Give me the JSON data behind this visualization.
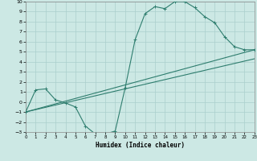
{
  "xlabel": "Humidex (Indice chaleur)",
  "xlim": [
    0,
    23
  ],
  "ylim": [
    -3,
    10
  ],
  "xticks": [
    0,
    1,
    2,
    3,
    4,
    5,
    6,
    7,
    8,
    9,
    10,
    11,
    12,
    13,
    14,
    15,
    16,
    17,
    18,
    19,
    20,
    21,
    22,
    23
  ],
  "yticks": [
    -3,
    -2,
    -1,
    0,
    1,
    2,
    3,
    4,
    5,
    6,
    7,
    8,
    9,
    10
  ],
  "line_color": "#2e7d6e",
  "bg_color": "#cce8e4",
  "grid_color": "#aacfcc",
  "curve1_x": [
    0,
    1,
    2,
    3,
    4,
    5,
    6,
    7,
    8,
    9,
    10,
    11,
    12,
    13,
    14,
    15,
    16,
    17,
    18,
    19,
    20,
    21,
    22,
    23
  ],
  "curve1_y": [
    -1.0,
    1.2,
    1.3,
    0.2,
    -0.1,
    -0.5,
    -2.4,
    -3.2,
    -3.2,
    -2.9,
    1.4,
    6.2,
    8.8,
    9.5,
    9.3,
    10.0,
    10.0,
    9.4,
    8.5,
    7.9,
    6.5,
    5.5,
    5.2,
    5.2
  ],
  "line2_x": [
    0,
    23
  ],
  "line2_y": [
    -1.0,
    5.2
  ],
  "line3_x": [
    0,
    23
  ],
  "line3_y": [
    -1.0,
    4.3
  ],
  "marker_size": 2.5
}
